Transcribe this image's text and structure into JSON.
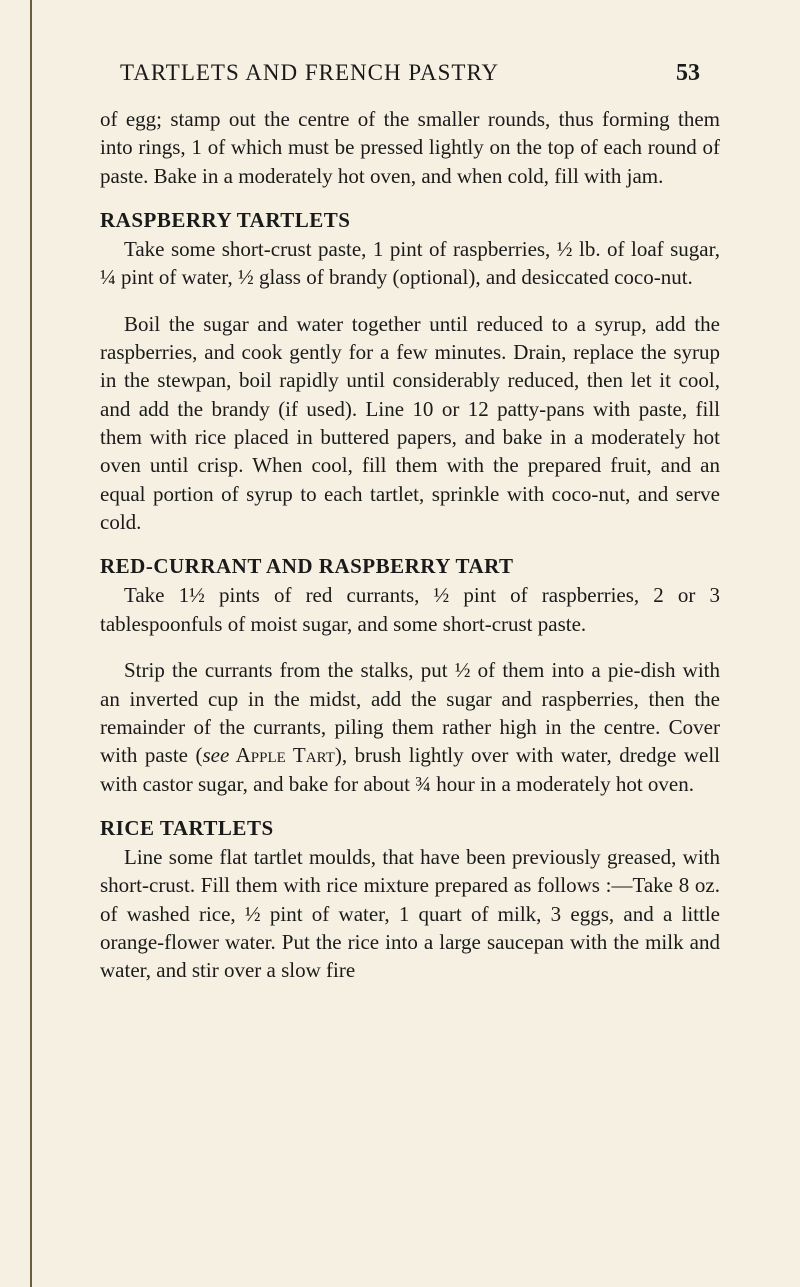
{
  "header": {
    "title": "TARTLETS AND FRENCH PASTRY",
    "page_number": "53"
  },
  "intro_paragraph": "of egg; stamp out the centre of the smaller rounds, thus forming them into rings, 1 of which must be pressed lightly on the top of each round of paste. Bake in a moderately hot oven, and when cold, fill with jam.",
  "sections": {
    "raspberry_tartlets": {
      "title": "RASPBERRY TARTLETS",
      "para1": "Take some short-crust paste, 1 pint of raspberries, ½ lb. of loaf sugar, ¼ pint of water, ½ glass of brandy (optional), and desiccated coco-nut.",
      "para2": "Boil the sugar and water together until reduced to a syrup, add the raspberries, and cook gently for a few minutes. Drain, replace the syrup in the stewpan, boil rapidly until considerably reduced, then let it cool, and add the brandy (if used). Line 10 or 12 patty-pans with paste, fill them with rice placed in buttered papers, and bake in a moderately hot oven until crisp. When cool, fill them with the prepared fruit, and an equal portion of syrup to each tartlet, sprinkle with coco-nut, and serve cold."
    },
    "red_currant": {
      "title": "RED-CURRANT AND RASPBERRY TART",
      "para1": "Take 1½ pints of red currants, ½ pint of raspberries, 2 or 3 tablespoonfuls of moist sugar, and some short-crust paste.",
      "para2_part1": "Strip the currants from the stalks, put ½ of them into a pie-dish with an inverted cup in the midst, add the sugar and raspberries, then the remainder of the currants, piling them rather high in the centre. Cover with paste (",
      "para2_see": "see",
      "para2_apple": " Apple Tart",
      "para2_part2": "), brush lightly over with water, dredge well with castor sugar, and bake for about ¾ hour in a moderately hot oven."
    },
    "rice_tartlets": {
      "title": "RICE TARTLETS",
      "para1": "Line some flat tartlet moulds, that have been previously greased, with short-crust. Fill them with rice mixture prepared as follows :—Take 8 oz. of washed rice, ½ pint of water, 1 quart of milk, 3 eggs, and a little orange-flower water. Put the rice into a large saucepan with the milk and water, and stir over a slow fire"
    }
  }
}
